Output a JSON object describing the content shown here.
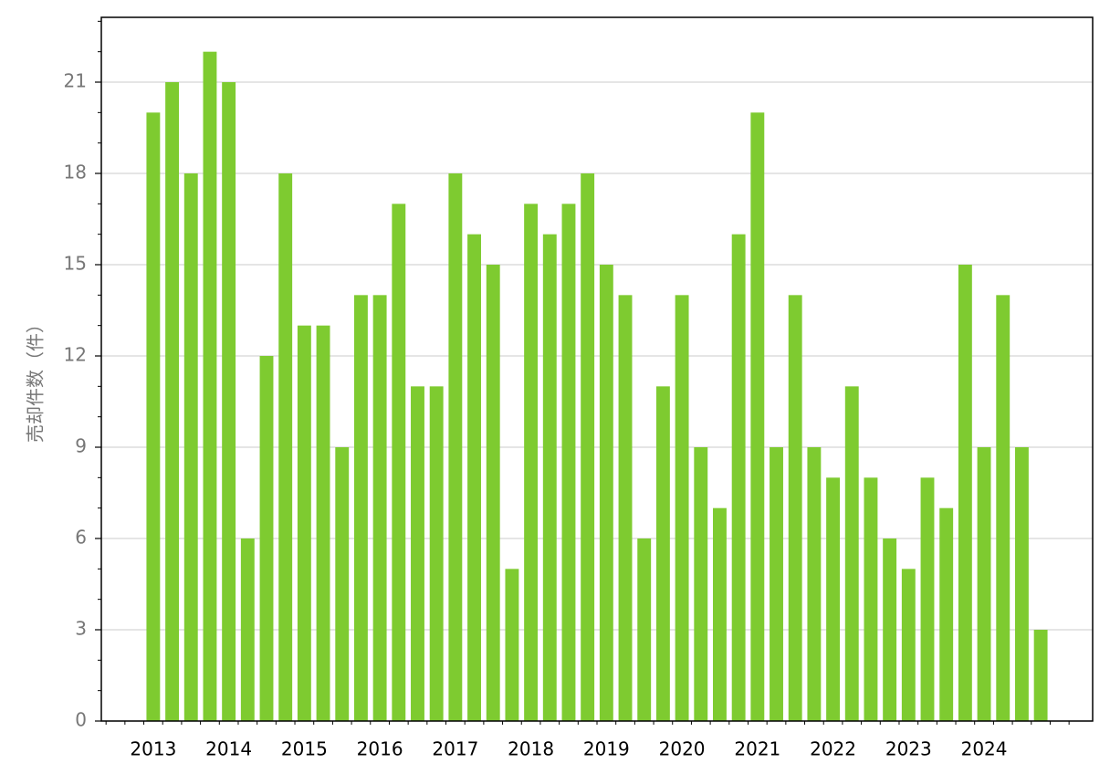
{
  "chart_data": {
    "type": "bar",
    "ylabel": "売却件数（件）",
    "categories": [
      "2013",
      null,
      null,
      null,
      "2014",
      null,
      null,
      null,
      "2015",
      null,
      null,
      null,
      "2016",
      null,
      null,
      null,
      "2017",
      null,
      null,
      null,
      "2018",
      null,
      null,
      null,
      "2019",
      null,
      null,
      null,
      "2020",
      null,
      null,
      null,
      "2021",
      null,
      null,
      null,
      "2022",
      null,
      null,
      null,
      "2023",
      null,
      null,
      null,
      "2024",
      null,
      null,
      null
    ],
    "values": [
      20,
      21,
      18,
      22,
      21,
      6,
      12,
      18,
      13,
      13,
      9,
      14,
      14,
      17,
      11,
      11,
      18,
      16,
      15,
      5,
      17,
      16,
      17,
      18,
      15,
      14,
      6,
      11,
      14,
      9,
      7,
      16,
      20,
      9,
      14,
      9,
      8,
      11,
      8,
      6,
      5,
      8,
      7,
      15,
      9,
      14,
      9,
      3
    ],
    "color": "#7ecb30",
    "ylim": [
      0,
      23.13
    ],
    "yticks": [
      0,
      3,
      6,
      9,
      12,
      15,
      18,
      21
    ],
    "grid": true
  }
}
